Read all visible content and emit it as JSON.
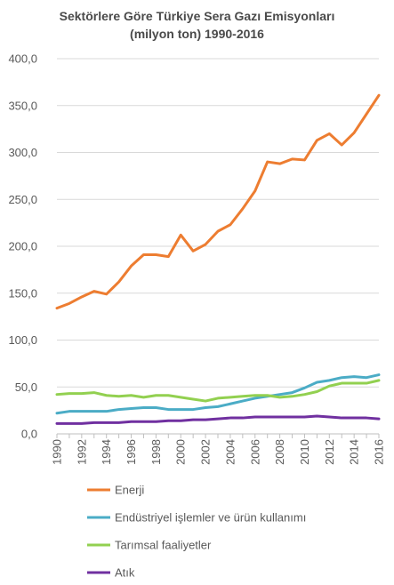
{
  "chart_data": {
    "type": "line",
    "title_line1": "Sektörlere Göre Türkiye Sera Gazı Emisyonları",
    "title_line2": "(milyon ton) 1990-2016",
    "xlabel": "",
    "ylabel": "",
    "ylim": [
      0,
      400
    ],
    "y_ticks": [
      "0,0",
      "50,0",
      "100,0",
      "150,0",
      "200,0",
      "250,0",
      "300,0",
      "350,0",
      "400,0"
    ],
    "x": [
      1990,
      1991,
      1992,
      1993,
      1994,
      1995,
      1996,
      1997,
      1998,
      1999,
      2000,
      2001,
      2002,
      2003,
      2004,
      2005,
      2006,
      2007,
      2008,
      2009,
      2010,
      2011,
      2012,
      2013,
      2014,
      2015,
      2016
    ],
    "x_tick_labels": [
      "1990",
      "1992",
      "1994",
      "1996",
      "1998",
      "2000",
      "2002",
      "2004",
      "2006",
      "2008",
      "2010",
      "2012",
      "2014",
      "2016"
    ],
    "grid": "horizontal",
    "legend_position": "bottom",
    "series": [
      {
        "name": "Enerji",
        "color": "#ED7D31",
        "values": [
          134,
          139,
          146,
          152,
          149,
          162,
          179,
          191,
          191,
          189,
          212,
          195,
          202,
          216,
          223,
          240,
          259,
          290,
          288,
          293,
          292,
          313,
          320,
          308,
          321,
          341,
          361
        ]
      },
      {
        "name": "Endüstriyel işlemler ve ürün kullanımı",
        "color": "#4BACC6",
        "values": [
          22,
          24,
          24,
          24,
          24,
          26,
          27,
          28,
          28,
          26,
          26,
          26,
          28,
          29,
          32,
          35,
          38,
          40,
          42,
          44,
          49,
          55,
          57,
          60,
          61,
          60,
          63
        ]
      },
      {
        "name": "Tarımsal faaliyetler",
        "color": "#92D050",
        "values": [
          42,
          43,
          43,
          44,
          41,
          40,
          41,
          39,
          41,
          41,
          39,
          37,
          35,
          38,
          39,
          40,
          41,
          41,
          39,
          40,
          42,
          45,
          51,
          54,
          54,
          54,
          57
        ]
      },
      {
        "name": "Atık",
        "color": "#7030A0",
        "values": [
          11,
          11,
          11,
          12,
          12,
          12,
          13,
          13,
          13,
          14,
          14,
          15,
          15,
          16,
          17,
          17,
          18,
          18,
          18,
          18,
          18,
          19,
          18,
          17,
          17,
          17,
          16
        ]
      }
    ]
  }
}
